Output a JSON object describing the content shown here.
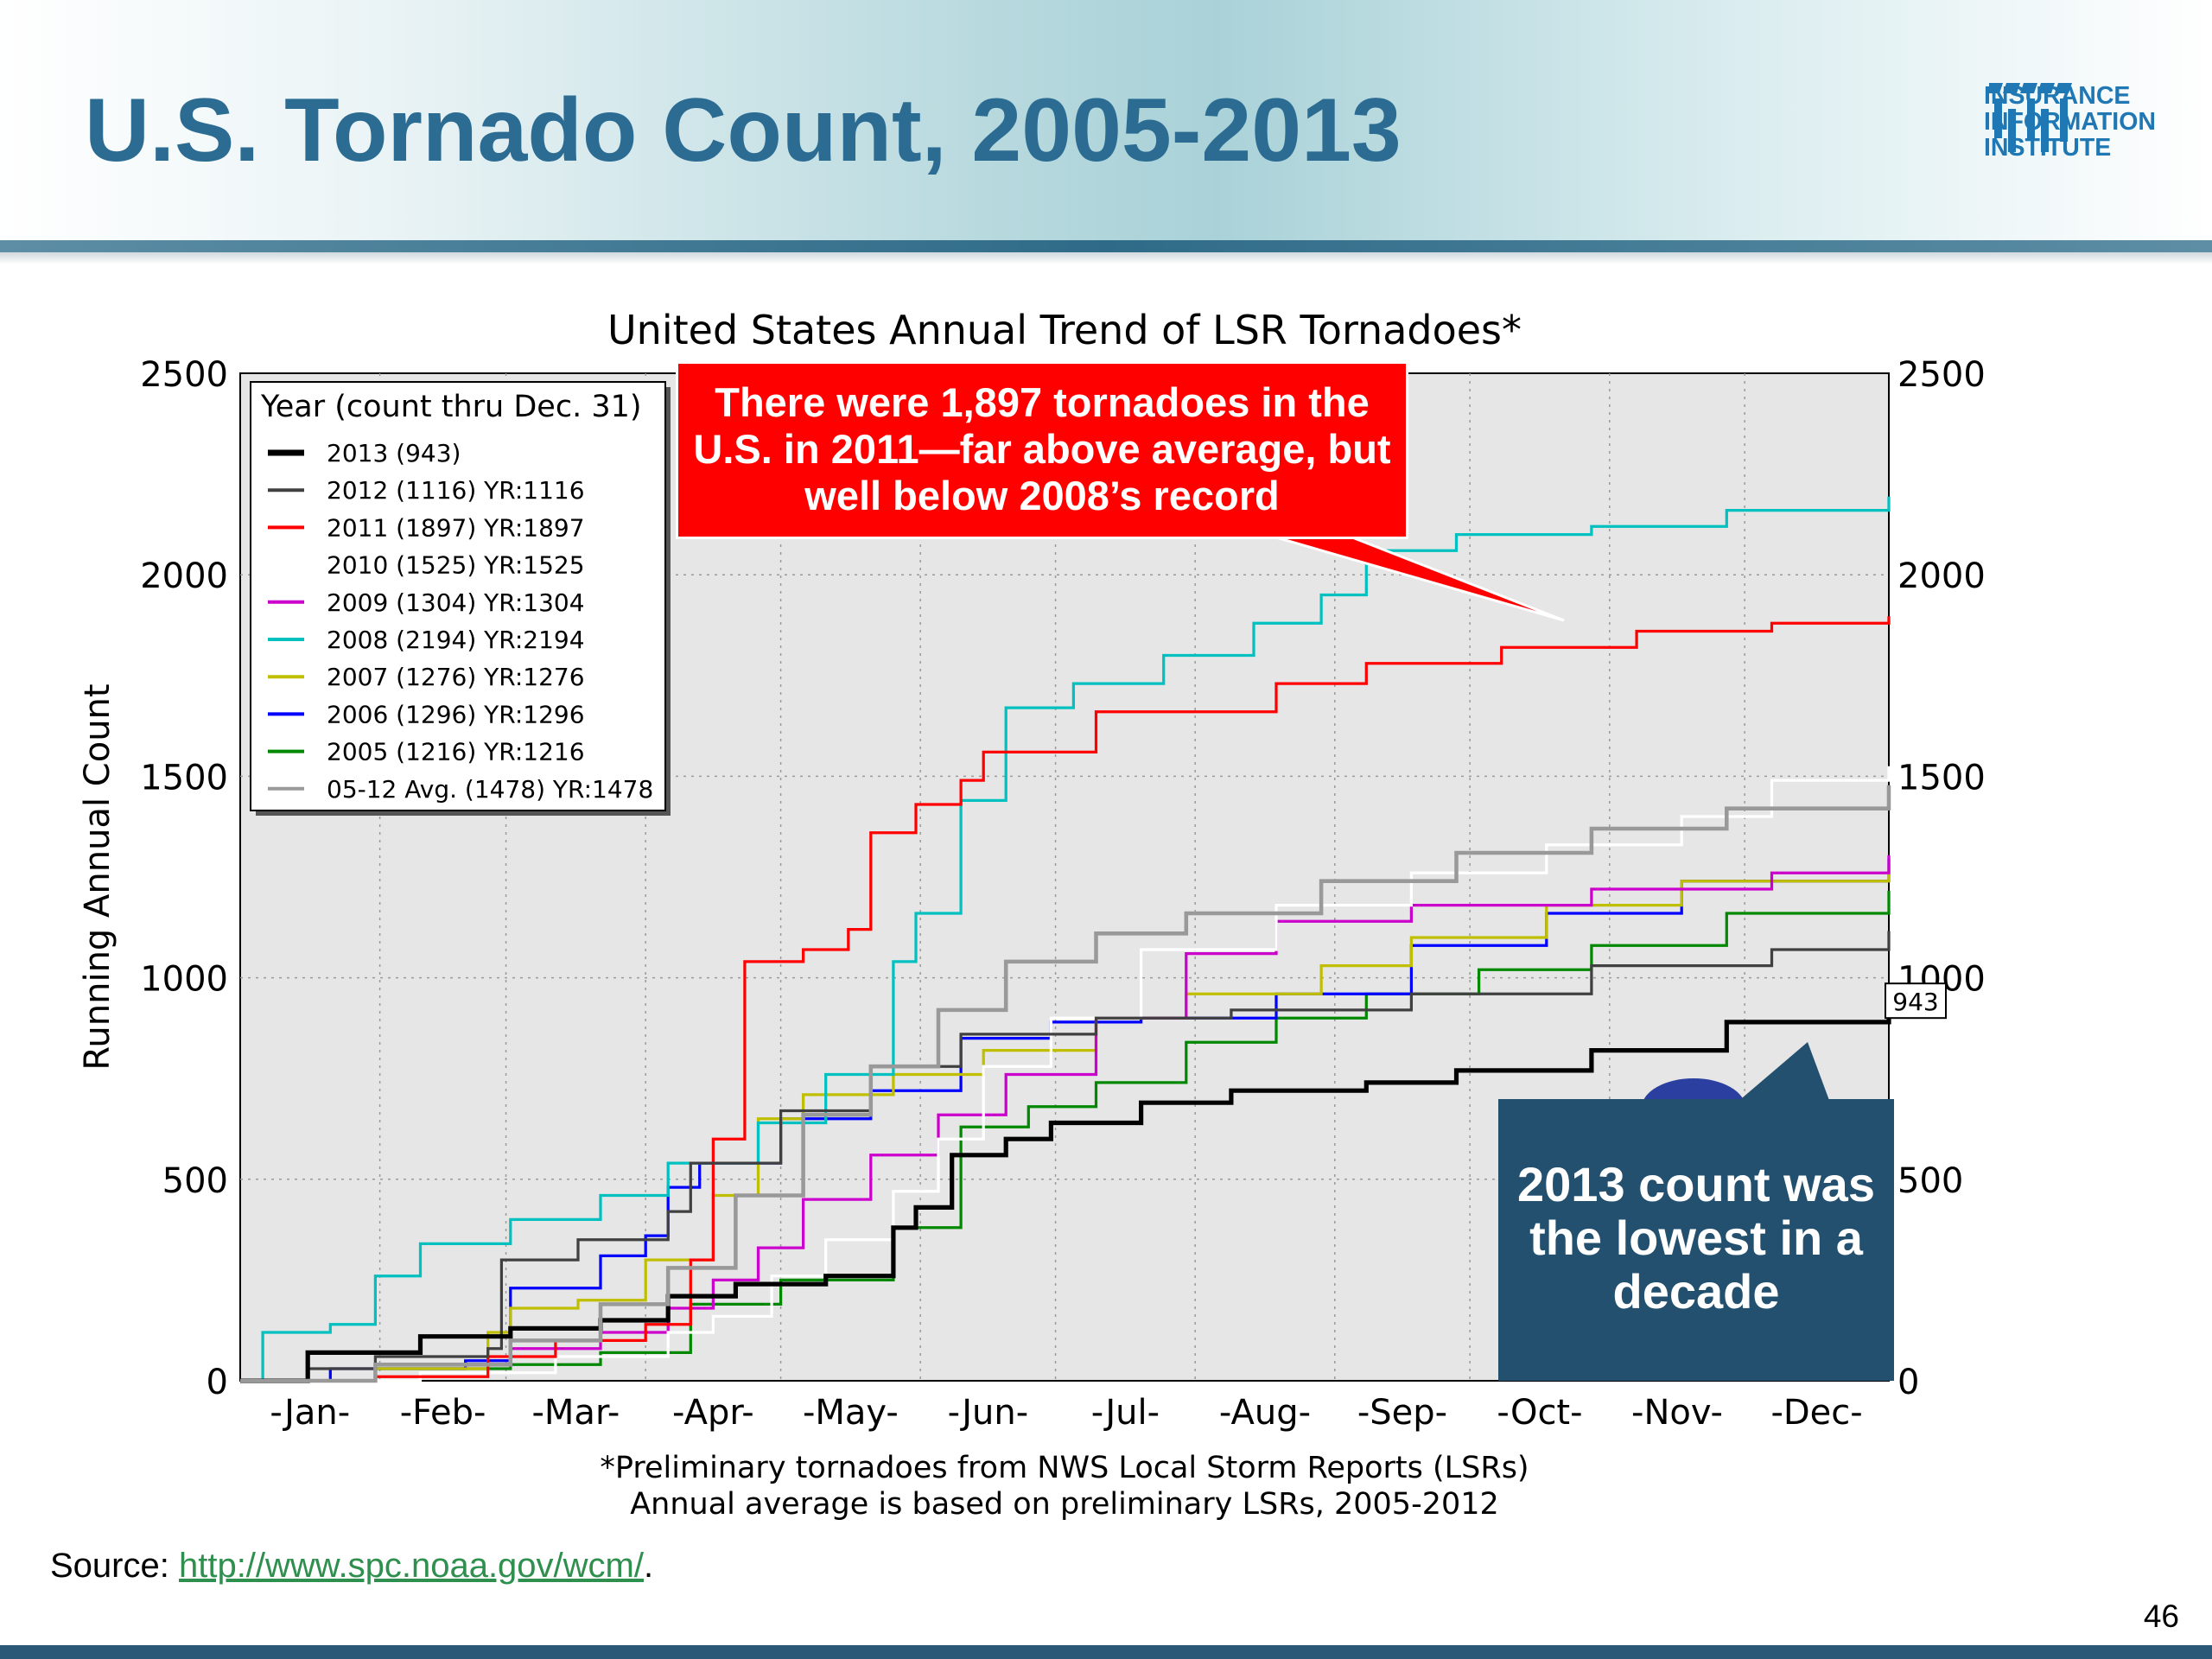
{
  "slide": {
    "title": "U.S. Tornado Count, 2005-2013",
    "logo_text": "INSURANCE\nINFORMATION\nINSTITUTE",
    "source_label": "Source: ",
    "source_link": "http://www.spc.noaa.gov/wcm/",
    "source_end": ".",
    "page_number": "46",
    "colors": {
      "title": "#2c6c93",
      "logo": "#1f78b4",
      "footer_bar": "#2b5876",
      "link": "#2f8f4e"
    }
  },
  "annotations": {
    "red_callout": "There were 1,897 tornadoes in the U.S. in 2011—far above average, but well below 2008’s record",
    "blue_callout": "2013 count was the lowest in a decade",
    "colors": {
      "red_callout": "#ff0000",
      "blue_callout": "#23506f"
    }
  },
  "chart_data": {
    "type": "line",
    "title": "United States Annual Trend of LSR Tornadoes*",
    "ylabel": "Running Annual Count",
    "xlabel": "",
    "ylim": [
      0,
      2500
    ],
    "yticks": [
      0,
      500,
      1000,
      1500,
      2000,
      2500
    ],
    "xlim": [
      0,
      366
    ],
    "month_labels": [
      "-Jan-",
      "-Feb-",
      "-Mar-",
      "-Apr-",
      "-May-",
      "-Jun-",
      "-Jul-",
      "-Aug-",
      "-Sep-",
      "-Oct-",
      "-Nov-",
      "-Dec-"
    ],
    "month_start_days": [
      0,
      31,
      59,
      90,
      120,
      151,
      181,
      212,
      243,
      273,
      304,
      334
    ],
    "x_unit": "day of year",
    "grid": true,
    "legend_title": "Year (count thru Dec. 31)",
    "legend_position": "top-left",
    "end_value_label": "943",
    "footnote_lines": [
      "*Preliminary tornadoes from NWS Local Storm Reports (LSRs)",
      "Annual average is based on preliminary LSRs, 2005-2012"
    ],
    "series": [
      {
        "name": "2013 (943)",
        "color": "#000000",
        "width": 4,
        "points": [
          [
            0,
            0
          ],
          [
            12,
            0
          ],
          [
            15,
            70
          ],
          [
            40,
            110
          ],
          [
            60,
            130
          ],
          [
            80,
            150
          ],
          [
            95,
            210
          ],
          [
            110,
            240
          ],
          [
            130,
            260
          ],
          [
            145,
            380
          ],
          [
            150,
            430
          ],
          [
            158,
            560
          ],
          [
            170,
            600
          ],
          [
            180,
            640
          ],
          [
            200,
            690
          ],
          [
            220,
            720
          ],
          [
            250,
            740
          ],
          [
            270,
            770
          ],
          [
            300,
            820
          ],
          [
            330,
            890
          ],
          [
            366,
            943
          ]
        ]
      },
      {
        "name": "2012 (1116) YR:1116",
        "color": "#404040",
        "width": 2.5,
        "points": [
          [
            0,
            0
          ],
          [
            15,
            30
          ],
          [
            30,
            60
          ],
          [
            55,
            80
          ],
          [
            58,
            300
          ],
          [
            75,
            350
          ],
          [
            95,
            420
          ],
          [
            100,
            540
          ],
          [
            120,
            670
          ],
          [
            140,
            780
          ],
          [
            160,
            860
          ],
          [
            190,
            900
          ],
          [
            220,
            920
          ],
          [
            260,
            960
          ],
          [
            300,
            1030
          ],
          [
            340,
            1070
          ],
          [
            366,
            1116
          ]
        ]
      },
      {
        "name": "2011 (1897) YR:1897",
        "color": "#ff0000",
        "width": 2.5,
        "points": [
          [
            0,
            0
          ],
          [
            30,
            10
          ],
          [
            55,
            60
          ],
          [
            70,
            100
          ],
          [
            90,
            140
          ],
          [
            100,
            300
          ],
          [
            105,
            600
          ],
          [
            112,
            1040
          ],
          [
            125,
            1070
          ],
          [
            135,
            1120
          ],
          [
            140,
            1360
          ],
          [
            150,
            1430
          ],
          [
            160,
            1490
          ],
          [
            165,
            1560
          ],
          [
            190,
            1660
          ],
          [
            230,
            1730
          ],
          [
            250,
            1780
          ],
          [
            280,
            1820
          ],
          [
            310,
            1860
          ],
          [
            340,
            1880
          ],
          [
            366,
            1897
          ]
        ]
      },
      {
        "name": "2010 (1525) YR:1525",
        "color": "#ffffff",
        "width": 2.5,
        "points": [
          [
            0,
            0
          ],
          [
            40,
            20
          ],
          [
            70,
            60
          ],
          [
            95,
            120
          ],
          [
            105,
            160
          ],
          [
            118,
            260
          ],
          [
            130,
            350
          ],
          [
            145,
            470
          ],
          [
            155,
            600
          ],
          [
            165,
            780
          ],
          [
            180,
            900
          ],
          [
            200,
            1070
          ],
          [
            230,
            1180
          ],
          [
            260,
            1260
          ],
          [
            290,
            1330
          ],
          [
            320,
            1400
          ],
          [
            340,
            1490
          ],
          [
            366,
            1525
          ]
        ]
      },
      {
        "name": "2009 (1304) YR:1304",
        "color": "#cc00cc",
        "width": 2.5,
        "points": [
          [
            0,
            0
          ],
          [
            30,
            40
          ],
          [
            60,
            80
          ],
          [
            80,
            120
          ],
          [
            95,
            180
          ],
          [
            105,
            250
          ],
          [
            115,
            330
          ],
          [
            125,
            450
          ],
          [
            140,
            560
          ],
          [
            155,
            660
          ],
          [
            170,
            760
          ],
          [
            190,
            900
          ],
          [
            210,
            1060
          ],
          [
            230,
            1140
          ],
          [
            260,
            1180
          ],
          [
            300,
            1220
          ],
          [
            340,
            1260
          ],
          [
            366,
            1304
          ]
        ]
      },
      {
        "name": "2008 (2194) YR:2194",
        "color": "#00c0c0",
        "width": 2.5,
        "points": [
          [
            0,
            0
          ],
          [
            5,
            120
          ],
          [
            20,
            140
          ],
          [
            30,
            260
          ],
          [
            40,
            340
          ],
          [
            60,
            400
          ],
          [
            80,
            460
          ],
          [
            95,
            540
          ],
          [
            115,
            640
          ],
          [
            130,
            760
          ],
          [
            145,
            1040
          ],
          [
            150,
            1160
          ],
          [
            160,
            1440
          ],
          [
            170,
            1670
          ],
          [
            185,
            1730
          ],
          [
            205,
            1800
          ],
          [
            225,
            1880
          ],
          [
            240,
            1950
          ],
          [
            250,
            2060
          ],
          [
            270,
            2100
          ],
          [
            300,
            2120
          ],
          [
            330,
            2160
          ],
          [
            366,
            2194
          ]
        ]
      },
      {
        "name": "2007 (1276) YR:1276",
        "color": "#bfbf00",
        "width": 2.5,
        "points": [
          [
            0,
            0
          ],
          [
            30,
            30
          ],
          [
            55,
            120
          ],
          [
            60,
            180
          ],
          [
            75,
            200
          ],
          [
            90,
            300
          ],
          [
            105,
            460
          ],
          [
            115,
            650
          ],
          [
            125,
            710
          ],
          [
            145,
            760
          ],
          [
            165,
            820
          ],
          [
            190,
            900
          ],
          [
            210,
            960
          ],
          [
            240,
            1030
          ],
          [
            260,
            1100
          ],
          [
            290,
            1180
          ],
          [
            320,
            1240
          ],
          [
            366,
            1276
          ]
        ]
      },
      {
        "name": "2006 (1296) YR:1296",
        "color": "#0000ff",
        "width": 2.5,
        "points": [
          [
            0,
            0
          ],
          [
            20,
            30
          ],
          [
            50,
            50
          ],
          [
            60,
            230
          ],
          [
            80,
            310
          ],
          [
            90,
            360
          ],
          [
            95,
            480
          ],
          [
            102,
            540
          ],
          [
            120,
            650
          ],
          [
            140,
            720
          ],
          [
            160,
            850
          ],
          [
            180,
            890
          ],
          [
            200,
            900
          ],
          [
            230,
            960
          ],
          [
            260,
            1080
          ],
          [
            290,
            1160
          ],
          [
            320,
            1240
          ],
          [
            366,
            1296
          ]
        ]
      },
      {
        "name": "2005 (1216) YR:1216",
        "color": "#008800",
        "width": 2.5,
        "points": [
          [
            0,
            0
          ],
          [
            30,
            30
          ],
          [
            60,
            40
          ],
          [
            80,
            70
          ],
          [
            100,
            190
          ],
          [
            120,
            250
          ],
          [
            145,
            380
          ],
          [
            160,
            630
          ],
          [
            175,
            680
          ],
          [
            190,
            740
          ],
          [
            210,
            840
          ],
          [
            230,
            900
          ],
          [
            250,
            960
          ],
          [
            275,
            1020
          ],
          [
            300,
            1080
          ],
          [
            330,
            1160
          ],
          [
            366,
            1216
          ]
        ]
      },
      {
        "name": "05-12 Avg. (1478) YR:1478",
        "color": "#999999",
        "width": 3.5,
        "points": [
          [
            0,
            0
          ],
          [
            30,
            40
          ],
          [
            60,
            100
          ],
          [
            80,
            190
          ],
          [
            95,
            280
          ],
          [
            110,
            460
          ],
          [
            125,
            660
          ],
          [
            140,
            780
          ],
          [
            155,
            920
          ],
          [
            170,
            1040
          ],
          [
            190,
            1110
          ],
          [
            210,
            1160
          ],
          [
            240,
            1240
          ],
          [
            270,
            1310
          ],
          [
            300,
            1370
          ],
          [
            330,
            1420
          ],
          [
            366,
            1478
          ]
        ]
      }
    ]
  }
}
